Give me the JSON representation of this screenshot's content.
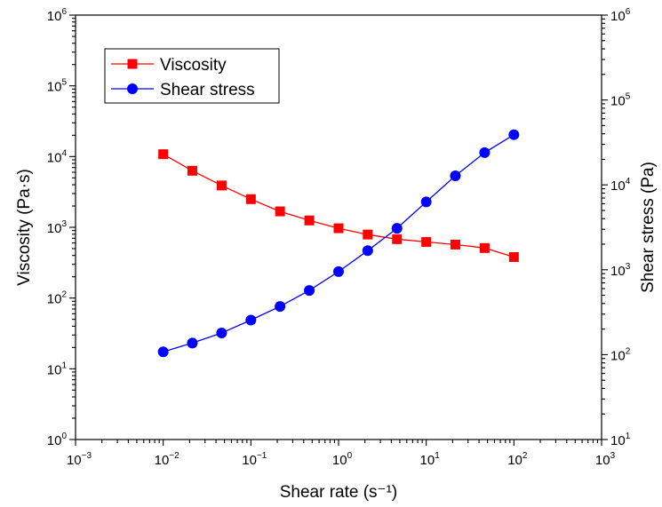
{
  "chart_data": {
    "type": "line",
    "xlabel": "Shear rate (s⁻¹)",
    "ylabel": "Viscosity (Pa·s)",
    "y2label": "Shear stress (Pa)",
    "x_scale": "log",
    "y_scale": "log",
    "y2_scale": "log",
    "xlim": [
      0.001,
      1000
    ],
    "ylim": [
      1,
      1000000
    ],
    "y2lim": [
      10,
      1000000
    ],
    "grid": false,
    "legend_position": "top-left",
    "x_ticks": [
      {
        "value": 0.001,
        "base": "10",
        "exp": "−3"
      },
      {
        "value": 0.01,
        "base": "10",
        "exp": "−2"
      },
      {
        "value": 0.1,
        "base": "10",
        "exp": "−1"
      },
      {
        "value": 1,
        "base": "10",
        "exp": "0"
      },
      {
        "value": 10,
        "base": "10",
        "exp": "1"
      },
      {
        "value": 100,
        "base": "10",
        "exp": "2"
      },
      {
        "value": 1000,
        "base": "10",
        "exp": "3"
      }
    ],
    "y_ticks": [
      {
        "value": 1,
        "base": "10",
        "exp": "0"
      },
      {
        "value": 10,
        "base": "10",
        "exp": "1"
      },
      {
        "value": 100,
        "base": "10",
        "exp": "2"
      },
      {
        "value": 1000,
        "base": "10",
        "exp": "3"
      },
      {
        "value": 10000,
        "base": "10",
        "exp": "4"
      },
      {
        "value": 100000,
        "base": "10",
        "exp": "5"
      },
      {
        "value": 1000000,
        "base": "10",
        "exp": "6"
      }
    ],
    "y2_ticks": [
      {
        "value": 10,
        "base": "10",
        "exp": "1"
      },
      {
        "value": 100,
        "base": "10",
        "exp": "2"
      },
      {
        "value": 1000,
        "base": "10",
        "exp": "3"
      },
      {
        "value": 10000,
        "base": "10",
        "exp": "4"
      },
      {
        "value": 100000,
        "base": "10",
        "exp": "5"
      },
      {
        "value": 1000000,
        "base": "10",
        "exp": "6"
      }
    ],
    "series": [
      {
        "name": "Viscosity",
        "axis": "left",
        "color": "#ff0000",
        "marker": "square",
        "x": [
          0.01,
          0.0215,
          0.0464,
          0.1,
          0.215,
          0.464,
          1,
          2.15,
          4.64,
          10,
          21.5,
          46.4,
          100
        ],
        "values": [
          10800,
          6300,
          3900,
          2500,
          1680,
          1250,
          970,
          790,
          680,
          620,
          570,
          510,
          380
        ]
      },
      {
        "name": "Shear stress",
        "axis": "right",
        "color": "#0000ff",
        "marker": "circle",
        "x": [
          0.01,
          0.0215,
          0.0464,
          0.1,
          0.215,
          0.464,
          1,
          2.15,
          4.64,
          10,
          21.5,
          46.4,
          100
        ],
        "values": [
          108,
          137,
          180,
          255,
          370,
          570,
          950,
          1680,
          3080,
          6300,
          12800,
          24000,
          39000
        ]
      }
    ]
  }
}
